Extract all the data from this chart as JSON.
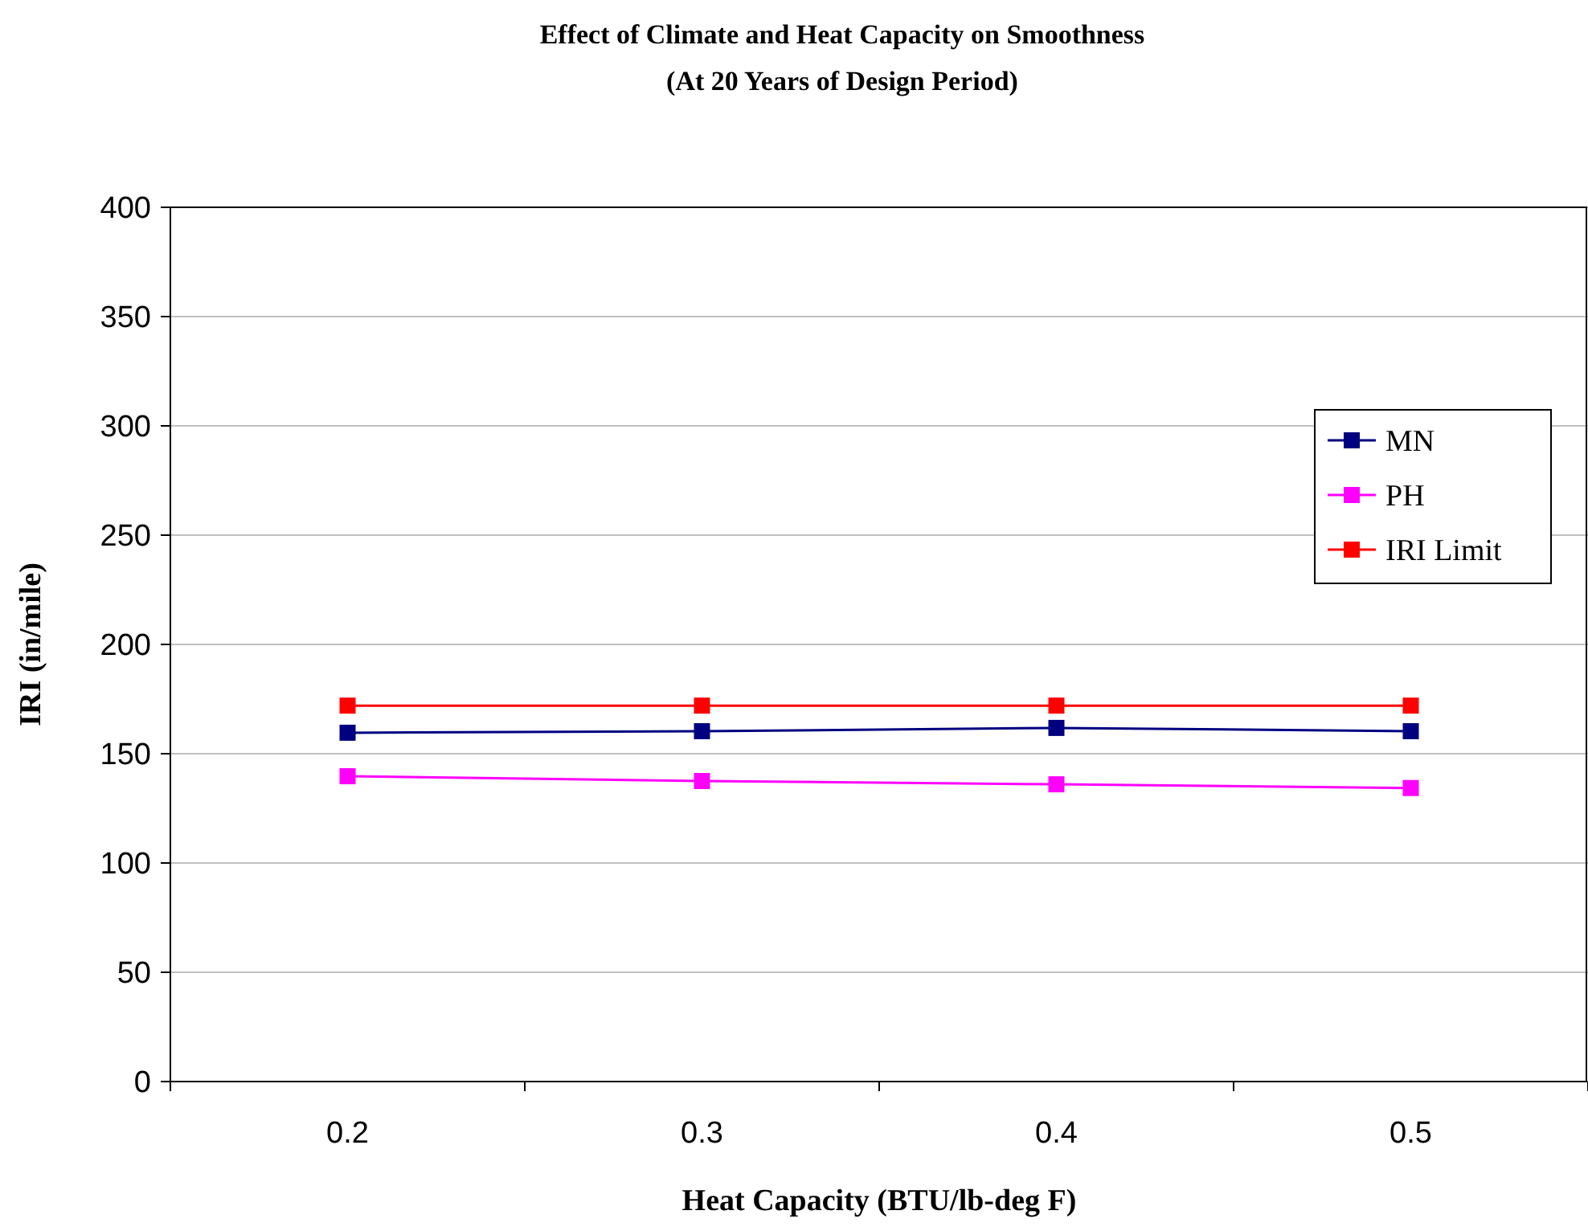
{
  "chart_data": {
    "type": "line",
    "title": "Effect of Climate and Heat Capacity on Smoothness",
    "subtitle": "(At 20 Years of Design Period)",
    "xlabel": "Heat Capacity (BTU/lb-deg F)",
    "ylabel": "IRI (in/mile)",
    "categories": [
      "0.2",
      "0.3",
      "0.4",
      "0.5"
    ],
    "series": [
      {
        "name": "MN",
        "color": "#000080",
        "values": [
          159.6,
          160.3,
          161.8,
          160.3
        ]
      },
      {
        "name": "PH",
        "color": "#ff00ff",
        "values": [
          139.7,
          137.5,
          136,
          134.3
        ]
      },
      {
        "name": "IRI Limit",
        "color": "#ff0000",
        "values": [
          172,
          172,
          172,
          172
        ]
      }
    ],
    "ylim": [
      0,
      400
    ],
    "yticks": [
      0,
      50,
      100,
      150,
      200,
      250,
      300,
      350,
      400
    ],
    "grid": "y",
    "legend": "right",
    "marker": "square",
    "line_style": "solid"
  }
}
